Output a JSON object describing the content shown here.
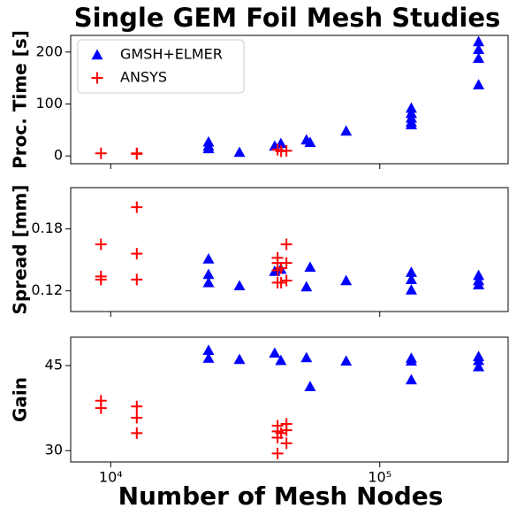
{
  "chart_data": [
    {
      "type": "scatter",
      "title": "Single GEM Foil Mesh Studies",
      "ylabel": "Proc. Time [s]",
      "xscale": "log",
      "xlim": [
        7100,
        300000
      ],
      "ylim": [
        -15,
        232
      ],
      "yticks": [
        0,
        100,
        200
      ],
      "legend": "upper left",
      "series": [
        {
          "name": "GMSH+ELMER",
          "color": "#0000ff",
          "marker": "triangle",
          "x": [
            23100,
            23100,
            23100,
            30100,
            40700,
            42900,
            53400,
            55100,
            75000,
            131000,
            131000,
            131000,
            131000,
            131000,
            233000,
            233000,
            233000,
            233000
          ],
          "values": [
            27,
            19,
            14,
            7,
            19,
            24,
            31,
            26,
            48,
            92,
            82,
            73,
            65,
            60,
            220,
            205,
            188,
            137
          ]
        },
        {
          "name": "ANSYS",
          "color": "#ff0000",
          "marker": "plus",
          "x": [
            9200,
            12500,
            12500,
            41700,
            43000,
            45000
          ],
          "values": [
            5,
            5,
            4,
            12,
            9,
            10
          ]
        }
      ]
    },
    {
      "type": "scatter",
      "ylabel": "Spread [mm]",
      "xscale": "log",
      "xlim": [
        7100,
        300000
      ],
      "ylim": [
        0.1,
        0.22
      ],
      "yticks": [
        0.12,
        0.18
      ],
      "series": [
        {
          "color": "#0000ff",
          "marker": "triangle",
          "x": [
            23100,
            23100,
            23100,
            30100,
            40700,
            42900,
            53400,
            55100,
            75000,
            131000,
            131000,
            131000,
            233000,
            233000,
            233000
          ],
          "values": [
            0.151,
            0.136,
            0.128,
            0.125,
            0.139,
            0.141,
            0.124,
            0.143,
            0.13,
            0.138,
            0.131,
            0.121,
            0.135,
            0.13,
            0.126
          ]
        },
        {
          "color": "#ff0000",
          "marker": "plus",
          "x": [
            9200,
            9200,
            9200,
            12500,
            12500,
            12500,
            41700,
            41700,
            41700,
            41700,
            43000,
            43000,
            45000,
            45000,
            45000
          ],
          "values": [
            0.165,
            0.134,
            0.131,
            0.201,
            0.156,
            0.131,
            0.152,
            0.147,
            0.14,
            0.128,
            0.142,
            0.128,
            0.165,
            0.147,
            0.13
          ]
        }
      ]
    },
    {
      "type": "scatter",
      "ylabel": "Gain",
      "xlabel": "Number of Mesh Nodes",
      "xscale": "log",
      "xlim": [
        7100,
        300000
      ],
      "ylim": [
        28,
        50
      ],
      "yticks": [
        30,
        45
      ],
      "xticks": [
        {
          "value": 10000,
          "label": "10⁴"
        },
        {
          "value": 100000,
          "label": "10⁵"
        }
      ],
      "series": [
        {
          "color": "#0000ff",
          "marker": "triangle",
          "x": [
            23100,
            23100,
            30100,
            40700,
            42900,
            53400,
            55100,
            75000,
            131000,
            131000,
            131000,
            233000,
            233000,
            233000
          ],
          "values": [
            47.7,
            46.3,
            46.1,
            47.2,
            45.9,
            46.4,
            41.3,
            45.8,
            46.3,
            45.8,
            42.5,
            46.6,
            45.9,
            44.8
          ]
        },
        {
          "color": "#ff0000",
          "marker": "plus",
          "x": [
            9200,
            9200,
            12500,
            12500,
            12500,
            41700,
            41700,
            41700,
            41700,
            43000,
            45000,
            45000,
            45000
          ],
          "values": [
            38.8,
            37.5,
            37.8,
            35.8,
            33.1,
            34.4,
            33.4,
            32.3,
            29.5,
            33.1,
            34.7,
            33.6,
            31.3
          ]
        }
      ]
    }
  ]
}
